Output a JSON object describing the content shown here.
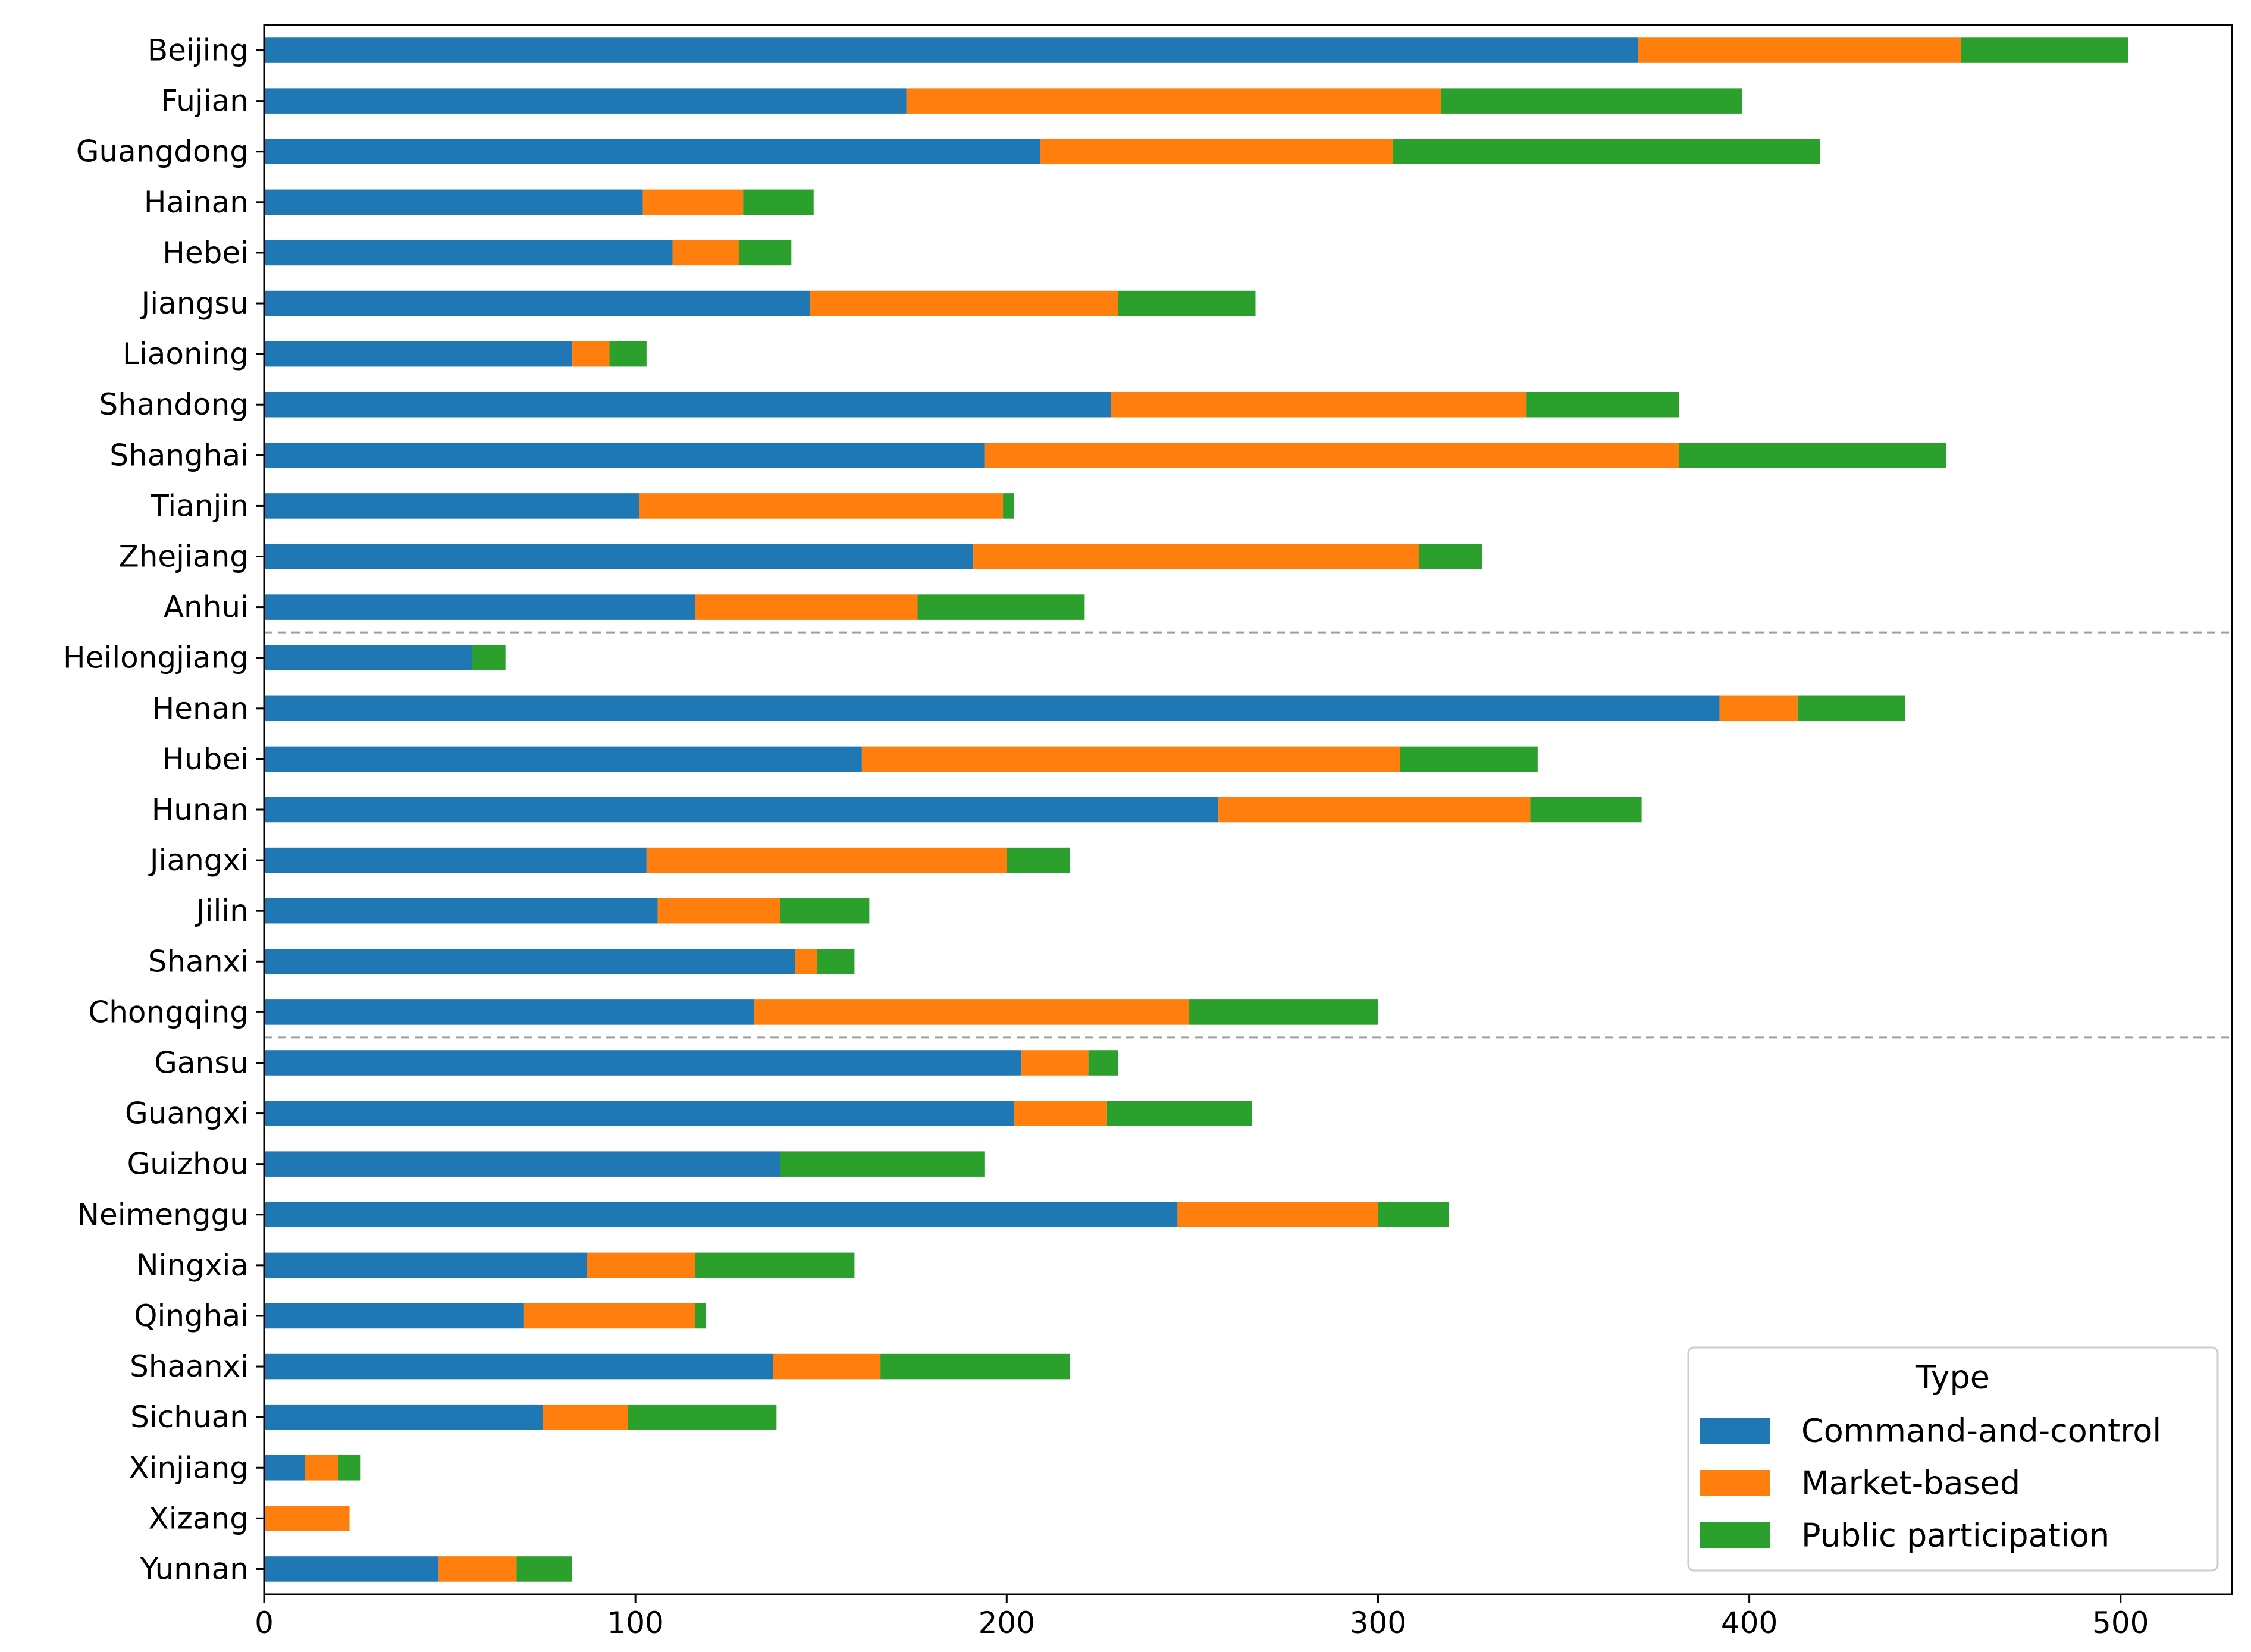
{
  "chart_data": {
    "type": "bar",
    "orientation": "horizontal",
    "stacked": true,
    "categories": [
      "Beijing",
      "Fujian",
      "Guangdong",
      "Hainan",
      "Hebei",
      "Jiangsu",
      "Liaoning",
      "Shandong",
      "Shanghai",
      "Tianjin",
      "Zhejiang",
      "Anhui",
      "Heilongjiang",
      "Henan",
      "Hubei",
      "Hunan",
      "Jiangxi",
      "Jilin",
      "Shanxi",
      "Chongqing",
      "Gansu",
      "Guangxi",
      "Guizhou",
      "Neimenggu",
      "Ningxia",
      "Qinghai",
      "Shaanxi",
      "Sichuan",
      "Xinjiang",
      "Xizang",
      "Yunnan"
    ],
    "series": [
      {
        "name": "Command-and-control",
        "color": "#1f77b4",
        "values": [
          370,
          173,
          209,
          102,
          110,
          147,
          83,
          228,
          194,
          101,
          191,
          116,
          56,
          392,
          161,
          257,
          103,
          106,
          143,
          132,
          204,
          202,
          139,
          246,
          87,
          70,
          137,
          75,
          11,
          0,
          47
        ]
      },
      {
        "name": "Market-based",
        "color": "#ff7f0e",
        "values": [
          87,
          144,
          95,
          27,
          18,
          83,
          10,
          112,
          187,
          98,
          120,
          60,
          0,
          21,
          145,
          84,
          97,
          33,
          6,
          117,
          18,
          25,
          0,
          54,
          29,
          46,
          29,
          23,
          9,
          23,
          21
        ]
      },
      {
        "name": "Public participation",
        "color": "#2ca02c",
        "values": [
          45,
          81,
          115,
          19,
          14,
          37,
          10,
          41,
          72,
          3,
          17,
          45,
          9,
          29,
          37,
          30,
          17,
          24,
          10,
          51,
          8,
          39,
          55,
          19,
          43,
          3,
          51,
          40,
          6,
          0,
          15
        ]
      }
    ],
    "group_separators_after": [
      "Anhui",
      "Chongqing"
    ],
    "xlim": [
      0,
      530
    ],
    "xticks": [
      "0",
      "100",
      "200",
      "300",
      "400",
      "500"
    ],
    "xlabel": "",
    "ylabel": "",
    "title": "",
    "legend": {
      "title": "Type",
      "position": "lower-right"
    }
  }
}
